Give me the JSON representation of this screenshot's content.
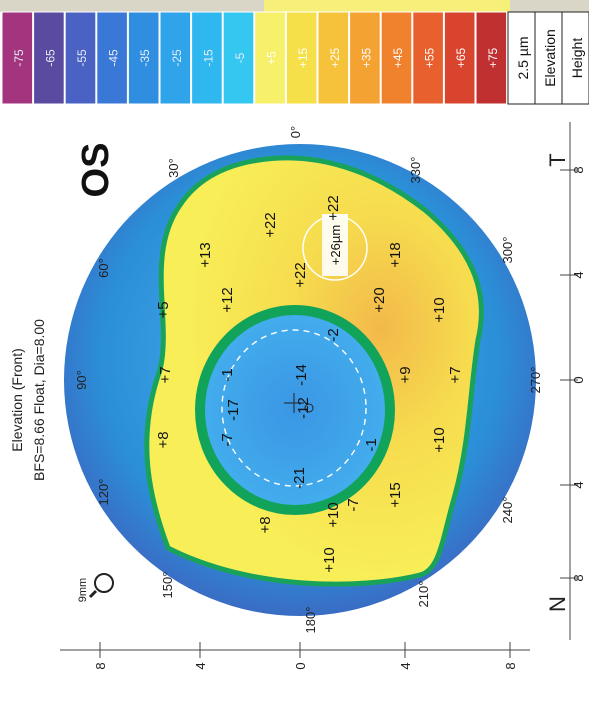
{
  "header": {
    "title": "Elevation (Front)",
    "subtitle": "BFS=8.66 Float, Dia=8.00",
    "eye": "OS",
    "zoom_label": "9mm"
  },
  "scale": {
    "step_label": "2.5 µm",
    "mode_label": "Elevation",
    "type_label": "Height",
    "entries": [
      {
        "label": "-75",
        "color": "#a3347e"
      },
      {
        "label": "-65",
        "color": "#5a4aa0"
      },
      {
        "label": "-55",
        "color": "#4a62c4"
      },
      {
        "label": "-45",
        "color": "#3a78d8"
      },
      {
        "label": "-35",
        "color": "#2f8ee0"
      },
      {
        "label": "-25",
        "color": "#2fa4ea"
      },
      {
        "label": "-15",
        "color": "#2fb8ef"
      },
      {
        "label": "-5",
        "color": "#34c7f0"
      },
      {
        "label": "+5",
        "color": "#f6f06a"
      },
      {
        "label": "+15",
        "color": "#f6e04a"
      },
      {
        "label": "+25",
        "color": "#f5c23a"
      },
      {
        "label": "+35",
        "color": "#f4a232"
      },
      {
        "label": "+45",
        "color": "#f0822e"
      },
      {
        "label": "+55",
        "color": "#e8602e"
      },
      {
        "label": "+65",
        "color": "#d8442e"
      },
      {
        "label": "+75",
        "color": "#c03030"
      }
    ]
  },
  "map": {
    "angles": [
      "0°",
      "30°",
      "60°",
      "90°",
      "120°",
      "150°",
      "180°",
      "210°",
      "240°",
      "270°",
      "300°",
      "330°"
    ],
    "side_labels": {
      "temporal": "T",
      "nasal": "N"
    },
    "ruler_top": [
      "8",
      "4",
      "0",
      "4",
      "8"
    ],
    "ruler_left": [
      "8",
      "4",
      "0",
      "4",
      "8"
    ],
    "values": [
      "+22",
      "+22",
      "+13",
      "+18",
      "+22",
      "+5",
      "+12",
      "+20",
      "+10",
      "+7",
      "-1",
      "+9",
      "+7",
      "+8",
      "-7",
      "-17",
      "-14",
      "-12",
      "-2",
      "-1",
      "+10",
      "-7",
      "-21",
      "+10",
      "+15",
      "+8",
      "+10"
    ],
    "cursor_readout": "+26µm",
    "colors": {
      "outer": "#2b8fd8",
      "rim": "#4a55a8",
      "plateau": "#f7ea4a",
      "ridge": "#1aa35a",
      "center": "#3fa6ea"
    }
  }
}
